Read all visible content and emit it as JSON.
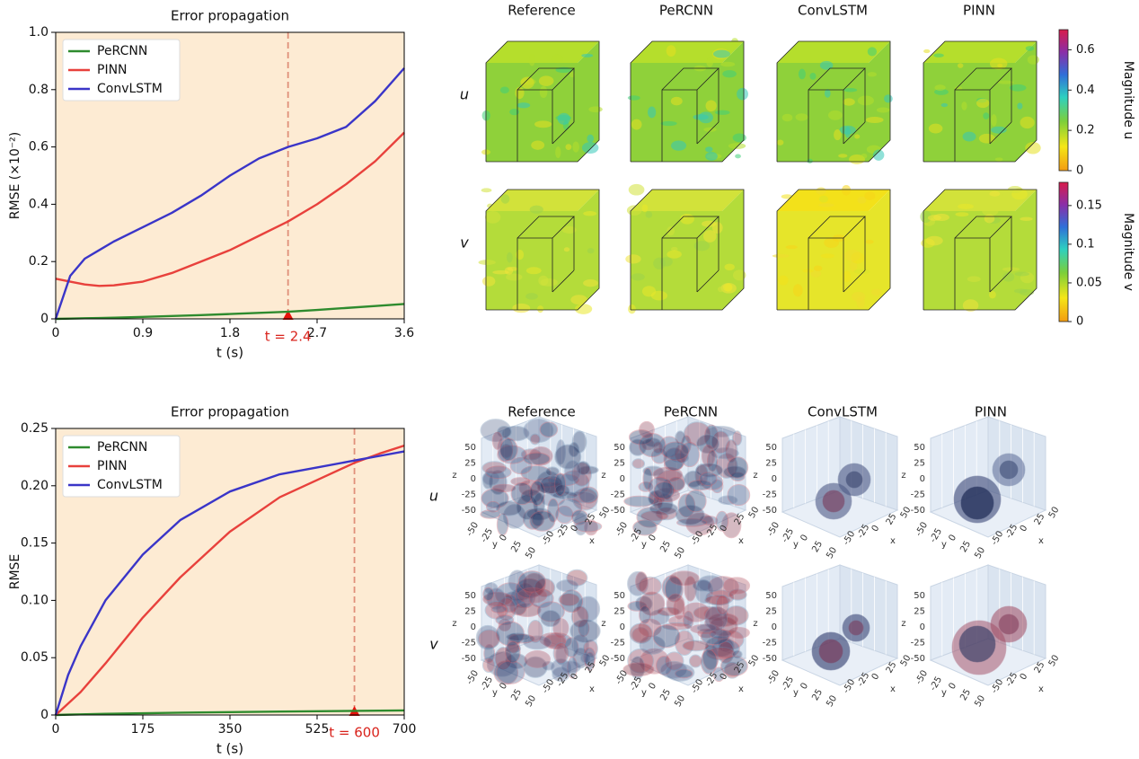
{
  "chart_data": [
    {
      "type": "line",
      "title": "Error propagation",
      "xlabel": "t (s)",
      "ylabel": "RMSE (×10⁻²)",
      "x": [
        0,
        0.15,
        0.3,
        0.45,
        0.6,
        0.9,
        1.2,
        1.5,
        1.8,
        2.1,
        2.4,
        2.7,
        3.0,
        3.3,
        3.6
      ],
      "series": [
        {
          "name": "PeRCNN",
          "color": "#2e8b2e",
          "values": [
            0,
            0.001,
            0.002,
            0.003,
            0.004,
            0.007,
            0.01,
            0.013,
            0.017,
            0.021,
            0.025,
            0.031,
            0.038,
            0.045,
            0.052
          ]
        },
        {
          "name": "PINN",
          "color": "#e8413c",
          "values": [
            0.14,
            0.13,
            0.12,
            0.115,
            0.117,
            0.13,
            0.16,
            0.2,
            0.24,
            0.29,
            0.34,
            0.4,
            0.47,
            0.55,
            0.65
          ]
        },
        {
          "name": "ConvLSTM",
          "color": "#3a35c8",
          "values": [
            0,
            0.15,
            0.21,
            0.24,
            0.27,
            0.32,
            0.37,
            0.43,
            0.5,
            0.56,
            0.6,
            0.63,
            0.67,
            0.76,
            0.875
          ]
        }
      ],
      "xlim": [
        0,
        3.6
      ],
      "xticks": [
        0,
        0.9,
        1.8,
        2.7,
        3.6
      ],
      "ylim": [
        0,
        1
      ],
      "yticks": [
        0,
        0.2,
        0.4,
        0.6,
        0.8,
        {
          "value": 1,
          "label": "1.0"
        }
      ],
      "legend": "upper left",
      "marker": {
        "x": 2.4,
        "label": "t = 2.4"
      }
    },
    {
      "type": "line",
      "title": "Error propagation",
      "xlabel": "t (s)",
      "ylabel": "RMSE",
      "x": [
        0,
        25,
        50,
        100,
        175,
        250,
        350,
        450,
        525,
        600,
        650,
        700
      ],
      "series": [
        {
          "name": "PeRCNN",
          "color": "#2e8b2e",
          "values": [
            0,
            0.0003,
            0.0005,
            0.001,
            0.0015,
            0.002,
            0.0025,
            0.003,
            0.0033,
            0.0036,
            0.0038,
            0.004
          ]
        },
        {
          "name": "PINN",
          "color": "#e8413c",
          "values": [
            0,
            0.01,
            0.02,
            0.045,
            0.085,
            0.12,
            0.16,
            0.19,
            0.205,
            0.22,
            0.228,
            0.235
          ]
        },
        {
          "name": "ConvLSTM",
          "color": "#3a35c8",
          "values": [
            0,
            0.035,
            0.06,
            0.1,
            0.14,
            0.17,
            0.195,
            0.21,
            0.216,
            0.222,
            0.226,
            0.23
          ]
        }
      ],
      "xlim": [
        0,
        700
      ],
      "xticks": [
        0,
        175,
        350,
        525,
        700
      ],
      "ylim": [
        0,
        0.25
      ],
      "yticks": [
        0,
        0.05,
        {
          "value": 0.1,
          "label": "0.10"
        },
        0.15,
        {
          "value": 0.2,
          "label": "0.20"
        },
        0.25
      ],
      "legend": "upper left",
      "marker": {
        "x": 600,
        "label": "t = 600"
      }
    }
  ],
  "field_panels": {
    "columns": [
      "Reference",
      "PeRCNN",
      "ConvLSTM",
      "PINN"
    ],
    "rows": [
      "u",
      "v"
    ],
    "colorbars": [
      {
        "label": "Magnitude u",
        "lim": [
          0,
          0.7
        ],
        "ticks": [
          0,
          0.2,
          0.4,
          0.6
        ]
      },
      {
        "label": "Magnitude v",
        "lim": [
          0,
          0.18
        ],
        "ticks": [
          0,
          0.05,
          0.1,
          0.15
        ]
      }
    ]
  },
  "iso_panels": {
    "columns": [
      "Reference",
      "PeRCNN",
      "ConvLSTM",
      "PINN"
    ],
    "rows": [
      "u",
      "v"
    ],
    "axis_ticks": [
      -50,
      -25,
      0,
      25,
      50
    ],
    "axis_labels": [
      "x",
      "y",
      "z"
    ]
  }
}
